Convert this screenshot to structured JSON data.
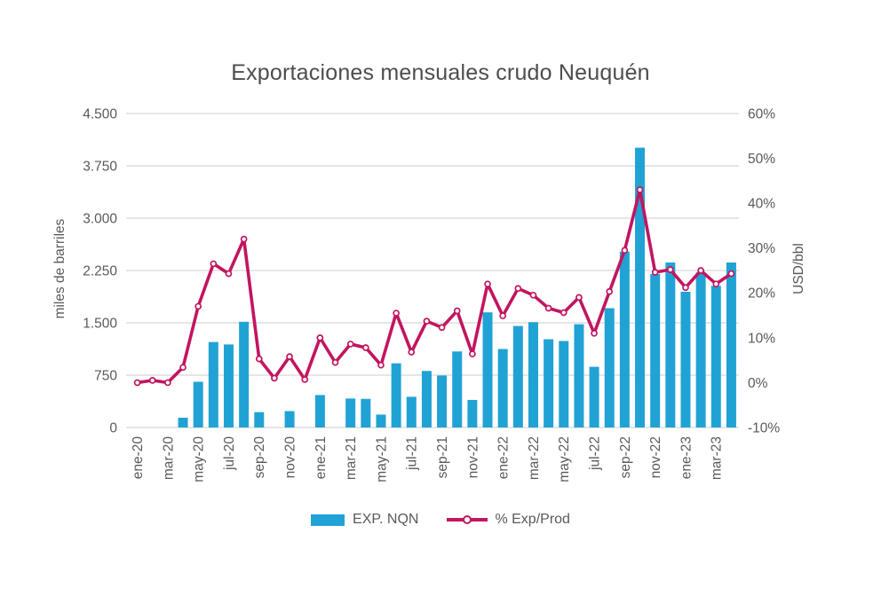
{
  "chart": {
    "colors": {
      "background": "#FFFFFF",
      "bar": "#21A2D4",
      "line": "#C2155F",
      "marker_fill": "#FFFFFF",
      "grid": "#D6D6D6",
      "text": "#595959",
      "title_text": "#4D4D4D"
    }
  },
  "chart_data": {
    "type": "bar",
    "combo": "bar + line (secondary axis)",
    "title": "Exportaciones mensuales crudo Neuquén",
    "categories": [
      "ene-20",
      "feb-20",
      "mar-20",
      "abr-20",
      "may-20",
      "jun-20",
      "jul-20",
      "ago-20",
      "sep-20",
      "oct-20",
      "nov-20",
      "dic-20",
      "ene-21",
      "feb-21",
      "mar-21",
      "abr-21",
      "may-21",
      "jun-21",
      "jul-21",
      "ago-21",
      "sep-21",
      "oct-21",
      "nov-21",
      "dic-21",
      "ene-22",
      "feb-22",
      "mar-22",
      "abr-22",
      "may-22",
      "jun-22",
      "jul-22",
      "ago-22",
      "sep-22",
      "oct-22",
      "nov-22",
      "dic-22",
      "ene-23",
      "feb-23",
      "mar-23",
      "abr-23"
    ],
    "x_tick_labels_shown": [
      "ene-20",
      "mar-20",
      "may-20",
      "jul-20",
      "sep-20",
      "nov-20",
      "ene-21",
      "mar-21",
      "may-21",
      "jul-21",
      "sep-21",
      "nov-21",
      "ene-22",
      "mar-22",
      "may-22",
      "jul-22",
      "sep-22",
      "nov-22",
      "ene-23",
      "mar-23"
    ],
    "x_label_every": 2,
    "series": [
      {
        "name": "EXP. NQN",
        "type": "bar",
        "axis": "left",
        "values": [
          0,
          0,
          0,
          140,
          655,
          1225,
          1190,
          1515,
          220,
          0,
          235,
          0,
          465,
          0,
          415,
          410,
          185,
          920,
          440,
          810,
          745,
          1090,
          395,
          1650,
          1125,
          1455,
          1510,
          1265,
          1240,
          1480,
          870,
          1710,
          2520,
          4010,
          2200,
          2365,
          1945,
          2220,
          2030,
          2365
        ]
      },
      {
        "name": "% Exp/Prod",
        "type": "line",
        "axis": "right",
        "values": [
          0,
          0.5,
          0,
          3.4,
          17,
          26.5,
          24.3,
          32,
          5.3,
          1,
          5.8,
          0.7,
          10,
          4.5,
          8.6,
          7.8,
          3.9,
          15.5,
          6.8,
          13.7,
          12.3,
          16,
          6.4,
          22,
          14.9,
          21,
          19.5,
          16.6,
          15.6,
          19,
          11,
          20.3,
          29.5,
          43,
          24.6,
          25.2,
          21.2,
          25,
          22,
          24.3
        ]
      }
    ],
    "y_left": {
      "title": "miles de barriles",
      "min": 0,
      "max": 4500,
      "step": 750,
      "tick_labels": [
        "0",
        "750",
        "1.500",
        "2.250",
        "3.000",
        "3.750",
        "4.500"
      ]
    },
    "y_right": {
      "title": "USD/bbl",
      "min": -10,
      "max": 60,
      "step": 10,
      "tick_labels": [
        "-10%",
        "0%",
        "10%",
        "20%",
        "30%",
        "40%",
        "50%",
        "60%"
      ]
    },
    "legend_position": "bottom",
    "grid": "horizontal"
  }
}
